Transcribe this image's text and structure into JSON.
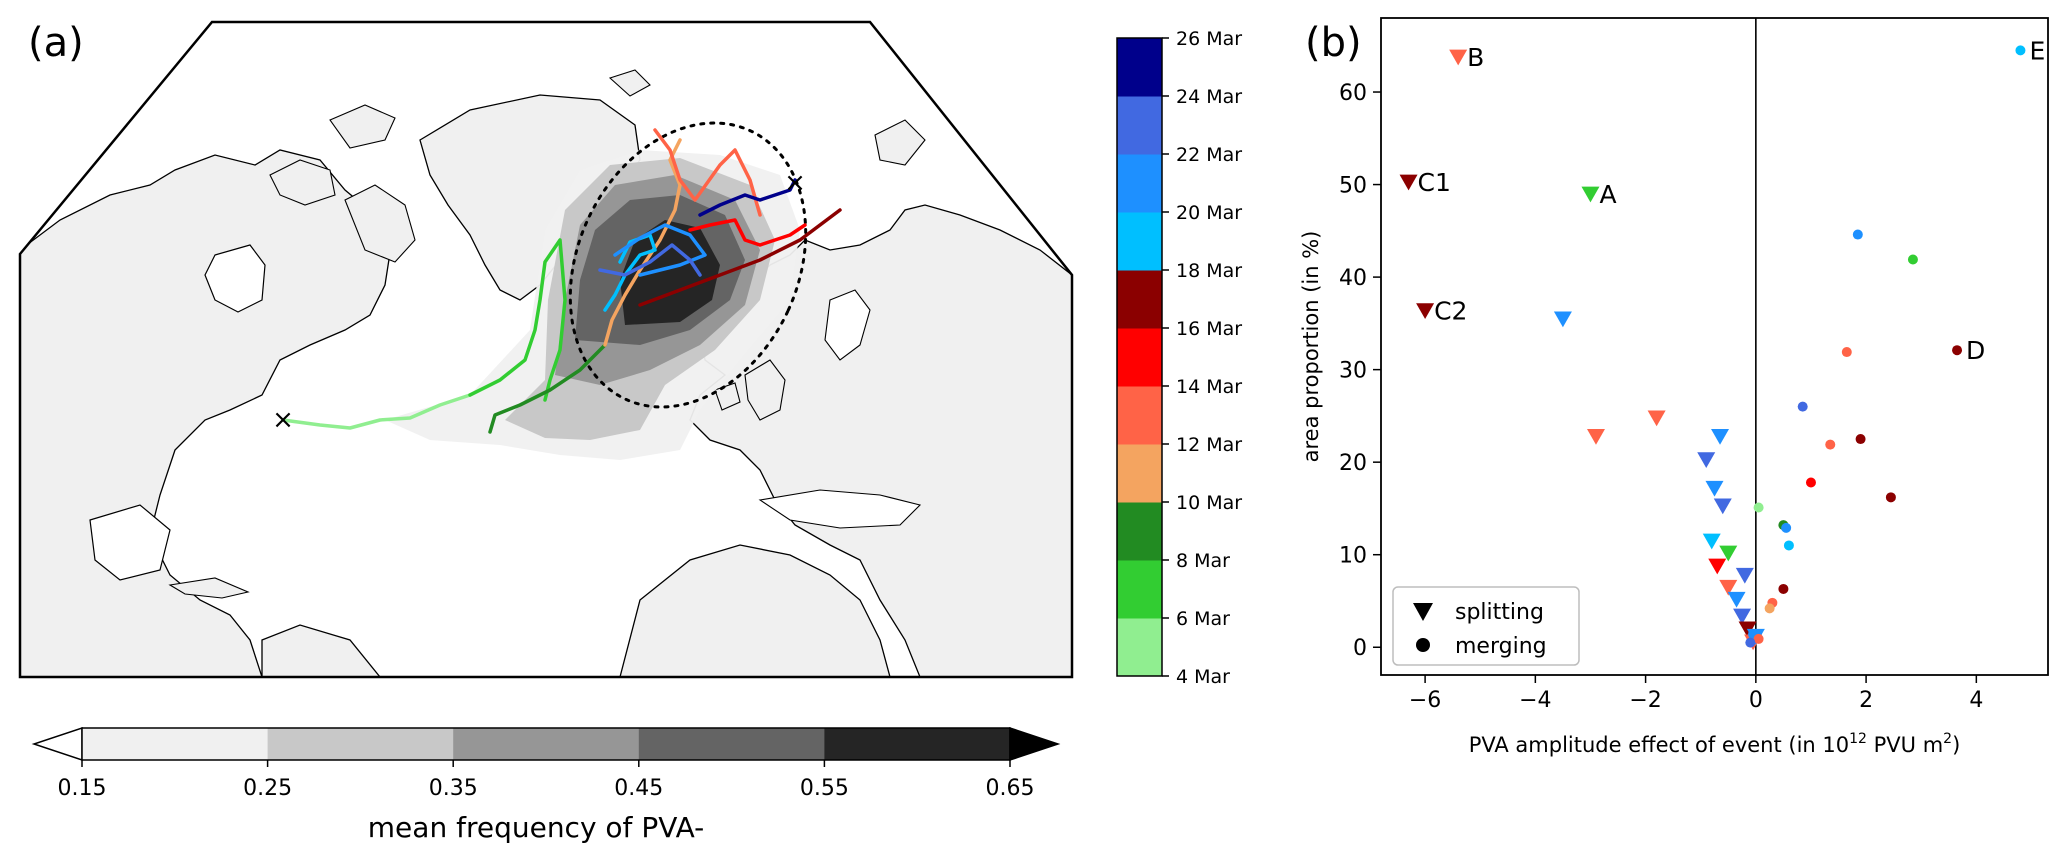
{
  "panel_a": {
    "label": "(a)",
    "start_marker": "×",
    "end_marker": "×",
    "frequency_colorbar": {
      "label": "mean frequency of PVA-",
      "ticks": [
        "0.15",
        "0.25",
        "0.35",
        "0.45",
        "0.55",
        "0.65"
      ],
      "colors": [
        "#f0f0f0",
        "#c8c8c8",
        "#969696",
        "#646464",
        "#252525"
      ],
      "extend": "both"
    },
    "date_colorbar": {
      "ticks": [
        "4 Mar",
        "6 Mar",
        "8 Mar",
        "10 Mar",
        "12 Mar",
        "14 Mar",
        "16 Mar",
        "18 Mar",
        "20 Mar",
        "22 Mar",
        "24 Mar",
        "26 Mar"
      ],
      "colors": [
        "#90ee90",
        "#32cd32",
        "#228b22",
        "#f4a460",
        "#ff6347",
        "#ff0000",
        "#8b0000",
        "#00bfff",
        "#1e90ff",
        "#4169e1",
        "#00008b"
      ]
    }
  },
  "chart_data": {
    "type": "scatter",
    "panel_label": "(b)",
    "xlabel": "PVA amplitude effect of event (in 10",
    "xlabel_exp": "12",
    "xlabel_tail": " PVU m",
    "xlabel_exp2": "2",
    "xlabel_end": ")",
    "ylabel": "area proportion (in %)",
    "xlim": [
      -6.8,
      5.3
    ],
    "ylim": [
      -3,
      68
    ],
    "xticks": [
      -6,
      -4,
      -2,
      0,
      2,
      4
    ],
    "xtick_labels": [
      "−6",
      "−4",
      "−2",
      "0",
      "2",
      "4"
    ],
    "yticks": [
      0,
      10,
      20,
      30,
      40,
      50,
      60
    ],
    "ytick_labels": [
      "0",
      "10",
      "20",
      "30",
      "40",
      "50",
      "60"
    ],
    "legend": {
      "placement": "lower-left",
      "entries": [
        {
          "label": "splitting",
          "marker": "triangle-down"
        },
        {
          "label": "merging",
          "marker": "circle"
        }
      ]
    },
    "series": [
      {
        "marker": "triangle-down",
        "points": [
          {
            "x": -5.4,
            "y": 63.8,
            "color": "#ff6347",
            "label": "B"
          },
          {
            "x": -6.3,
            "y": 50.3,
            "color": "#8b0000",
            "label": "C1"
          },
          {
            "x": -3.0,
            "y": 49.0,
            "color": "#32cd32",
            "label": "A"
          },
          {
            "x": -6.0,
            "y": 36.4,
            "color": "#8b0000",
            "label": "C2"
          },
          {
            "x": -3.5,
            "y": 35.5,
            "color": "#1e90ff"
          },
          {
            "x": -2.9,
            "y": 22.8,
            "color": "#ff6347"
          },
          {
            "x": -1.8,
            "y": 24.8,
            "color": "#ff6347"
          },
          {
            "x": -0.65,
            "y": 22.8,
            "color": "#1e90ff"
          },
          {
            "x": -0.9,
            "y": 20.3,
            "color": "#4169e1"
          },
          {
            "x": -0.75,
            "y": 17.2,
            "color": "#1e90ff"
          },
          {
            "x": -0.6,
            "y": 15.3,
            "color": "#4169e1"
          },
          {
            "x": -0.8,
            "y": 11.5,
            "color": "#00bfff"
          },
          {
            "x": -0.5,
            "y": 10.2,
            "color": "#32cd32"
          },
          {
            "x": -0.7,
            "y": 8.8,
            "color": "#ff0000"
          },
          {
            "x": -0.2,
            "y": 7.8,
            "color": "#4169e1"
          },
          {
            "x": -0.5,
            "y": 6.5,
            "color": "#ff6347"
          },
          {
            "x": -0.35,
            "y": 5.2,
            "color": "#1e90ff"
          },
          {
            "x": -0.25,
            "y": 3.4,
            "color": "#4169e1"
          },
          {
            "x": -0.15,
            "y": 2.0,
            "color": "#8b0000"
          },
          {
            "x": -0.05,
            "y": 0.6,
            "color": "#ff6347"
          },
          {
            "x": 0.0,
            "y": 1.2,
            "color": "#1e90ff"
          }
        ]
      },
      {
        "marker": "circle",
        "points": [
          {
            "x": 4.8,
            "y": 64.5,
            "color": "#00bfff",
            "label": "E"
          },
          {
            "x": 1.85,
            "y": 44.6,
            "color": "#1e90ff"
          },
          {
            "x": 2.85,
            "y": 41.9,
            "color": "#32cd32"
          },
          {
            "x": 3.65,
            "y": 32.1,
            "color": "#8b0000",
            "label": "D"
          },
          {
            "x": 1.65,
            "y": 31.9,
            "color": "#ff6347"
          },
          {
            "x": 0.85,
            "y": 26.0,
            "color": "#4169e1"
          },
          {
            "x": 1.35,
            "y": 21.9,
            "color": "#ff6347"
          },
          {
            "x": 1.9,
            "y": 22.5,
            "color": "#8b0000"
          },
          {
            "x": 1.0,
            "y": 17.8,
            "color": "#ff0000"
          },
          {
            "x": 2.45,
            "y": 16.2,
            "color": "#8b0000"
          },
          {
            "x": 0.05,
            "y": 15.1,
            "color": "#90ee90"
          },
          {
            "x": 0.5,
            "y": 13.2,
            "color": "#228b22"
          },
          {
            "x": 0.55,
            "y": 12.9,
            "color": "#1e90ff"
          },
          {
            "x": 0.6,
            "y": 11.0,
            "color": "#00bfff"
          },
          {
            "x": 0.5,
            "y": 6.3,
            "color": "#8b0000"
          },
          {
            "x": 0.3,
            "y": 4.8,
            "color": "#ff6347"
          },
          {
            "x": 0.25,
            "y": 4.2,
            "color": "#f4a460"
          },
          {
            "x": -0.05,
            "y": 1.4,
            "color": "#1e90ff"
          },
          {
            "x": 0.05,
            "y": 0.9,
            "color": "#ff6347"
          },
          {
            "x": -0.1,
            "y": 0.5,
            "color": "#4169e1"
          }
        ]
      }
    ]
  }
}
